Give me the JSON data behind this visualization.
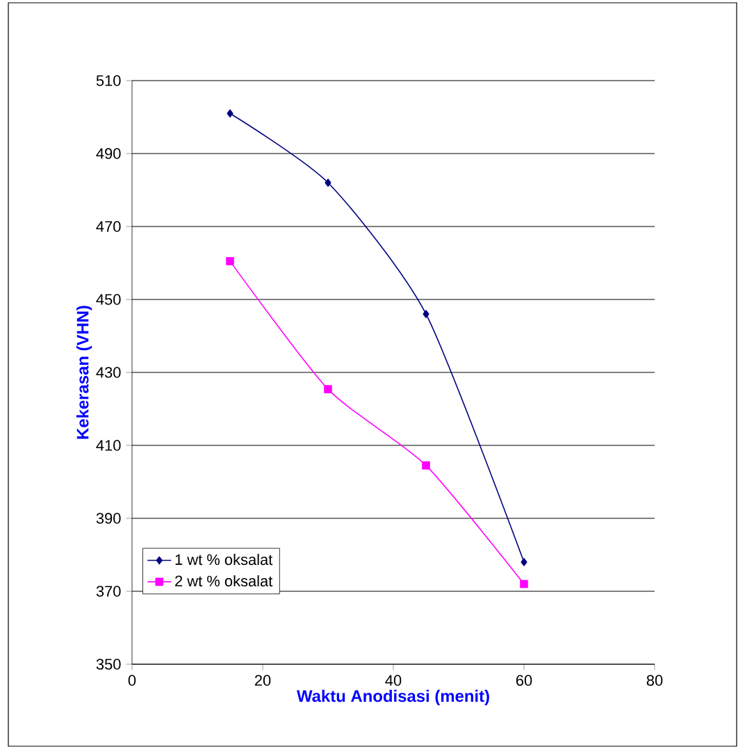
{
  "chart_data": {
    "type": "line",
    "xlabel": "Waktu Anodisasi (menit)",
    "ylabel": "Kekerasan (VHN)",
    "x": [
      15,
      30,
      45,
      60
    ],
    "series": [
      {
        "name": "1 wt % oksalat",
        "color": "#000080",
        "marker": "diamond",
        "values": [
          501,
          482,
          446,
          378
        ]
      },
      {
        "name": "2  wt % oksalat",
        "color": "#ff00ff",
        "marker": "square",
        "values": [
          460.5,
          425.4,
          404.5,
          372
        ]
      }
    ],
    "xlim": [
      0,
      80
    ],
    "ylim": [
      350,
      510
    ],
    "xticks": [
      0,
      20,
      40,
      60,
      80
    ],
    "yticks": [
      350,
      370,
      390,
      410,
      430,
      450,
      470,
      490,
      510
    ],
    "grid": "y",
    "legend": "bottom left"
  }
}
